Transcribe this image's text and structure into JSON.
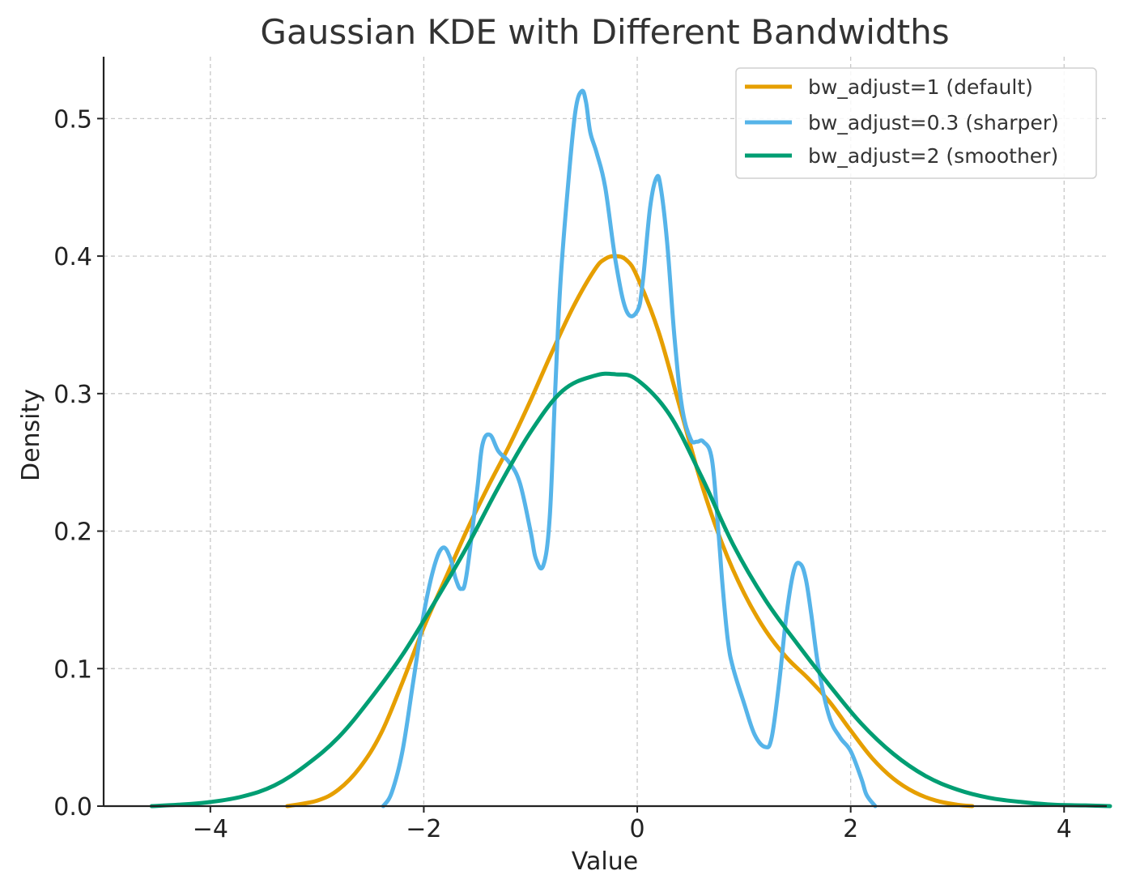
{
  "chart_data": {
    "type": "line",
    "title": "Gaussian KDE with Different Bandwidths",
    "xlabel": "Value",
    "ylabel": "Density",
    "xlim": [
      -5.0,
      4.4
    ],
    "ylim": [
      0.0,
      0.545
    ],
    "xticks": [
      -4,
      -2,
      0,
      2,
      4
    ],
    "xtick_labels": [
      "−4",
      "−2",
      "0",
      "2",
      "4"
    ],
    "yticks": [
      0.0,
      0.1,
      0.2,
      0.3,
      0.4,
      0.5
    ],
    "ytick_labels": [
      "0.0",
      "0.1",
      "0.2",
      "0.3",
      "0.4",
      "0.5"
    ],
    "grid": true,
    "legend_position": "top-right",
    "series": [
      {
        "name": "bw_adjust=1 (default)",
        "color": "#E69F00",
        "x": [
          -3.28,
          -3.0,
          -2.8,
          -2.6,
          -2.4,
          -2.2,
          -2.0,
          -1.8,
          -1.6,
          -1.4,
          -1.2,
          -1.0,
          -0.8,
          -0.6,
          -0.4,
          -0.3,
          -0.2,
          -0.1,
          0.0,
          0.2,
          0.4,
          0.6,
          0.8,
          1.0,
          1.2,
          1.4,
          1.6,
          1.8,
          2.0,
          2.2,
          2.4,
          2.6,
          2.8,
          3.0,
          3.14
        ],
        "y": [
          0.0,
          0.004,
          0.012,
          0.028,
          0.053,
          0.09,
          0.13,
          0.165,
          0.2,
          0.232,
          0.262,
          0.295,
          0.33,
          0.363,
          0.39,
          0.398,
          0.4,
          0.397,
          0.385,
          0.345,
          0.29,
          0.235,
          0.19,
          0.155,
          0.128,
          0.108,
          0.093,
          0.076,
          0.055,
          0.035,
          0.02,
          0.01,
          0.004,
          0.001,
          0.0
        ]
      },
      {
        "name": "bw_adjust=0.3 (sharper)",
        "color": "#56B4E9",
        "x": [
          -2.38,
          -2.3,
          -2.2,
          -2.1,
          -2.0,
          -1.9,
          -1.82,
          -1.75,
          -1.7,
          -1.65,
          -1.6,
          -1.5,
          -1.45,
          -1.38,
          -1.3,
          -1.2,
          -1.1,
          -1.0,
          -0.95,
          -0.88,
          -0.82,
          -0.77,
          -0.72,
          -0.65,
          -0.58,
          -0.52,
          -0.48,
          -0.44,
          -0.38,
          -0.3,
          -0.2,
          -0.1,
          0.0,
          0.05,
          0.12,
          0.18,
          0.22,
          0.28,
          0.35,
          0.42,
          0.5,
          0.56,
          0.62,
          0.7,
          0.76,
          0.8,
          0.85,
          0.9,
          1.0,
          1.1,
          1.2,
          1.26,
          1.33,
          1.4,
          1.47,
          1.53,
          1.58,
          1.63,
          1.7,
          1.8,
          1.9,
          2.0,
          2.1,
          2.15,
          2.23
        ],
        "y": [
          0.0,
          0.01,
          0.04,
          0.09,
          0.14,
          0.175,
          0.188,
          0.18,
          0.165,
          0.158,
          0.168,
          0.23,
          0.263,
          0.27,
          0.258,
          0.25,
          0.235,
          0.2,
          0.18,
          0.175,
          0.21,
          0.3,
          0.38,
          0.45,
          0.505,
          0.52,
          0.512,
          0.49,
          0.475,
          0.45,
          0.395,
          0.36,
          0.36,
          0.38,
          0.435,
          0.457,
          0.45,
          0.41,
          0.34,
          0.29,
          0.267,
          0.265,
          0.265,
          0.252,
          0.2,
          0.16,
          0.12,
          0.1,
          0.075,
          0.052,
          0.043,
          0.05,
          0.09,
          0.14,
          0.172,
          0.176,
          0.165,
          0.14,
          0.1,
          0.065,
          0.05,
          0.04,
          0.02,
          0.008,
          0.0
        ]
      },
      {
        "name": "bw_adjust=2 (smoother)",
        "color": "#009E73",
        "x": [
          -4.55,
          -4.3,
          -4.0,
          -3.7,
          -3.4,
          -3.1,
          -2.8,
          -2.5,
          -2.2,
          -1.9,
          -1.6,
          -1.3,
          -1.0,
          -0.7,
          -0.4,
          -0.2,
          0.0,
          0.3,
          0.6,
          0.9,
          1.2,
          1.5,
          1.8,
          2.1,
          2.4,
          2.7,
          3.0,
          3.3,
          3.6,
          3.9,
          4.2,
          4.43
        ],
        "y": [
          0.0,
          0.001,
          0.003,
          0.007,
          0.015,
          0.03,
          0.05,
          0.078,
          0.11,
          0.148,
          0.188,
          0.232,
          0.272,
          0.302,
          0.313,
          0.314,
          0.31,
          0.285,
          0.24,
          0.19,
          0.15,
          0.118,
          0.088,
          0.06,
          0.038,
          0.022,
          0.012,
          0.006,
          0.003,
          0.001,
          0.0005,
          0.0
        ]
      }
    ]
  }
}
